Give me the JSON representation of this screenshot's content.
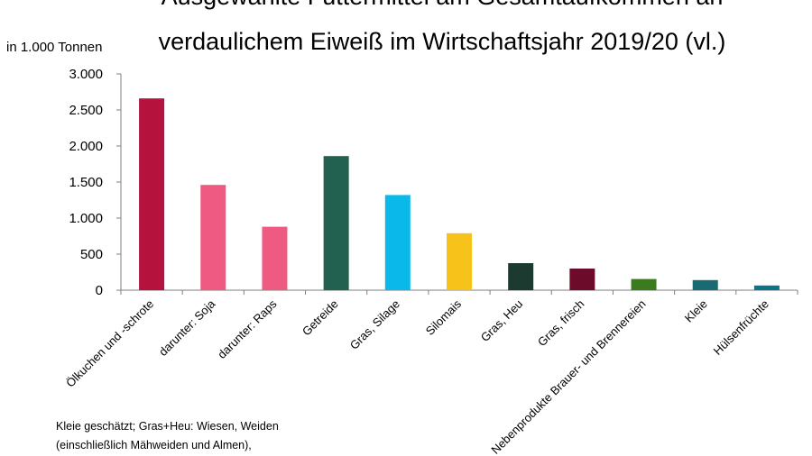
{
  "title": {
    "line1": "Ausgewählte Futtermittel am Gesamtaufkommen an",
    "line2": "verdaulichem Eiweiß im Wirtschaftsjahr 2019/20 (vl.)"
  },
  "notes": {
    "line1": "Kleie geschätzt; Gras+Heu: Wiesen, Weiden",
    "line2": "(einschließlich Mähweiden und Almen),"
  },
  "chart_data": {
    "type": "bar",
    "title": "Ausgewählte Futtermittel am Gesamtaufkommen an verdaulichem Eiweiß im Wirtschaftsjahr 2019/20 (vl.)",
    "ylabel": "in 1.000 Tonnen",
    "xlabel": "",
    "ylim": [
      0,
      3000
    ],
    "yticks": [
      {
        "value": 0,
        "label": "0"
      },
      {
        "value": 500,
        "label": "500"
      },
      {
        "value": 1000,
        "label": "1.000"
      },
      {
        "value": 1500,
        "label": "1.500"
      },
      {
        "value": 2000,
        "label": "2.000"
      },
      {
        "value": 2500,
        "label": "2.500"
      },
      {
        "value": 3000,
        "label": "3.000"
      }
    ],
    "categories": [
      "Ölkuchen und -schrote",
      "darunter: Soja",
      "darunter: Raps",
      "Getreide",
      "Gras, Silage",
      "Silomais",
      "Gras, Heu",
      "Gras, frisch",
      "Nebenprodukte Brauer- und Brennereien",
      "Kleie",
      "Hülsenfrüchte"
    ],
    "values": [
      2660,
      1460,
      880,
      1860,
      1320,
      790,
      375,
      300,
      155,
      140,
      65
    ],
    "colors": [
      "#b5123e",
      "#ee5a82",
      "#ee5a82",
      "#22614f",
      "#0ab9ea",
      "#f7c31b",
      "#1c3a2f",
      "#6c0b2a",
      "#3c7a1f",
      "#1a6b71",
      "#0d748c"
    ],
    "grid": false,
    "legend": "none"
  }
}
